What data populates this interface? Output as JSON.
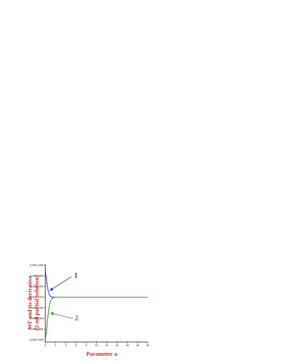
{
  "chart_data": {
    "type": "line",
    "xlabel": "Parameter a",
    "ylabel": [
      "WF and its derivative",
      "(2-nd partial solution)"
    ],
    "series": [
      {
        "name": "1",
        "color": "#2a2ad0",
        "x": [
          0,
          0.1,
          0.2,
          0.4,
          0.6,
          0.8,
          1.0,
          1.3,
          1.6,
          2
        ],
        "values": [
          5.5e+260,
          4.3e+260,
          3.4e+260,
          2e+260,
          1e+260,
          4.5e+259,
          1.8e+259,
          5e+258,
          1e+258,
          0
        ]
      },
      {
        "name": "2",
        "color": "#1a8a1a",
        "x": [
          0,
          0.1,
          0.2,
          0.4,
          0.6,
          0.8,
          1.0,
          1.3,
          1.6,
          2,
          5,
          10,
          15,
          20
        ],
        "values": [
          -8e+260,
          -7.3e+260,
          -6.4e+260,
          -4.5e+260,
          -2.8e+260,
          -1.5e+260,
          -7e+259,
          -2.5e+259,
          -5e+258,
          0,
          0,
          0,
          0,
          0
        ]
      }
    ],
    "xlim": [
      0,
      20
    ],
    "xticks": [
      0,
      2,
      4,
      6,
      8,
      10,
      12,
      14,
      16,
      18,
      20
    ],
    "ylim": [
      -8.4e+260,
      6.2e+260
    ],
    "yticks": [
      {
        "value": 6e+260,
        "label": "6,00E+260"
      },
      {
        "value": 4e+260,
        "label": "4,00E+260"
      },
      {
        "value": 2e+260,
        "label": "2,00E+260"
      },
      {
        "value": 0,
        "label": "0,00E+000"
      },
      {
        "value": -2e+260,
        "label": "-2,00E+260"
      },
      {
        "value": -4e+260,
        "label": "-4,00E+260"
      },
      {
        "value": -6e+260,
        "label": "-6,00E+260"
      },
      {
        "value": -8e+260,
        "label": "-8,00E+260"
      }
    ]
  }
}
